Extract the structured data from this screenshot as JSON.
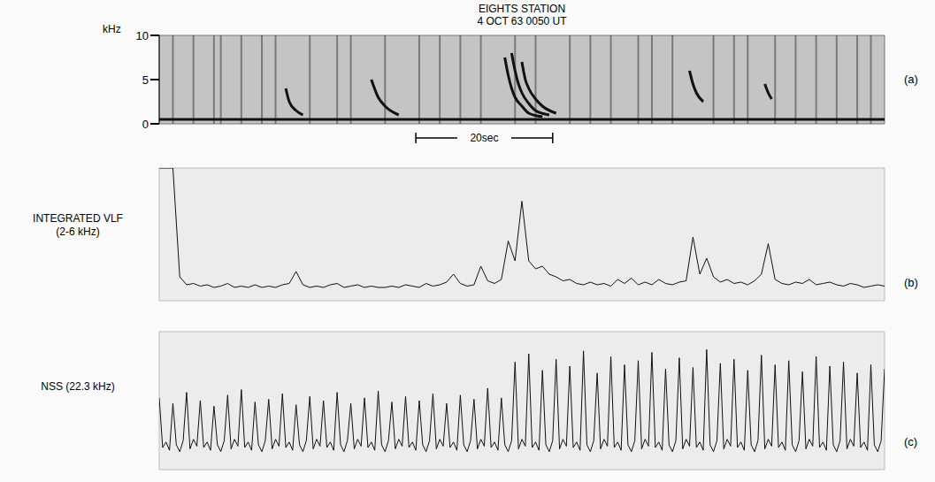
{
  "chart_data": [
    {
      "type": "spectrogram",
      "title": "EIGHTS STATION",
      "subtitle": "4 OCT 63 0050 UT",
      "panel": "(a)",
      "ylabel": "kHz",
      "xlim": [
        0,
        106
      ],
      "ylim": [
        0,
        10
      ],
      "yticks": [
        0,
        5,
        10
      ],
      "tick_labels": "y",
      "color": "#111111",
      "series": [
        {
          "x": [
            0,
            106
          ],
          "values": [
            0.5,
            0.5
          ]
        },
        {
          "x": [
            50.5,
            51,
            51.5,
            52,
            53,
            54,
            56
          ],
          "values": [
            7.5,
            5.5,
            4,
            3,
            2,
            1.2,
            0.8
          ]
        },
        {
          "x": [
            51.5,
            52,
            52.5,
            53,
            54,
            55,
            57
          ],
          "values": [
            8,
            6,
            4.5,
            3.5,
            2.3,
            1.5,
            1.0
          ]
        },
        {
          "x": [
            53,
            53.5,
            54,
            55,
            56,
            58
          ],
          "values": [
            7,
            5,
            4,
            2.8,
            2,
            1.2
          ]
        },
        {
          "x": [
            31,
            32,
            33,
            35
          ],
          "values": [
            5,
            3,
            2,
            1
          ]
        },
        {
          "x": [
            18.5,
            19,
            20,
            21
          ],
          "values": [
            4,
            2.5,
            1.5,
            1
          ]
        },
        {
          "x": [
            77.5,
            78,
            78.5,
            79.5
          ],
          "values": [
            6,
            4.5,
            3.5,
            2.5
          ]
        },
        {
          "x": [
            88.5,
            89,
            89.5
          ],
          "values": [
            4.5,
            3.5,
            2.8
          ]
        }
      ],
      "sferics": [
        2,
        5,
        8,
        9,
        12,
        15,
        17,
        22,
        26,
        28,
        33,
        38,
        41,
        44,
        47,
        52,
        55,
        60,
        63,
        66,
        70,
        72,
        75,
        81,
        84,
        86,
        90,
        93,
        96,
        99,
        102,
        104
      ],
      "annotations": [
        {
          "text": "20sec",
          "x": [
            37.5,
            57.5
          ]
        }
      ]
    },
    {
      "type": "line",
      "panel": "(b)",
      "ylabel": [
        "INTEGRATED VLF",
        "(2-6 kHz)"
      ],
      "xlim": [
        0,
        106
      ],
      "ylim": [
        0,
        10
      ],
      "tick_labels": false,
      "color": "#111111",
      "x": [
        0,
        1,
        2,
        3,
        4,
        5,
        6,
        7,
        8,
        9,
        10,
        11,
        12,
        13,
        14,
        15,
        16,
        17,
        18,
        19,
        20,
        21,
        22,
        23,
        24,
        25,
        26,
        27,
        28,
        29,
        30,
        31,
        32,
        33,
        34,
        35,
        36,
        37,
        38,
        39,
        40,
        41,
        42,
        43,
        44,
        45,
        46,
        47,
        48,
        49,
        50,
        51,
        52,
        53,
        54,
        55,
        56,
        57,
        58,
        59,
        60,
        61,
        62,
        63,
        64,
        65,
        66,
        67,
        68,
        69,
        70,
        71,
        72,
        73,
        74,
        75,
        76,
        77,
        78,
        79,
        80,
        81,
        82,
        83,
        84,
        85,
        86,
        87,
        88,
        89,
        90,
        91,
        92,
        93,
        94,
        95,
        96,
        97,
        98,
        99,
        100,
        101,
        102,
        103,
        104,
        105,
        106
      ],
      "values": [
        10,
        10,
        10,
        1.8,
        1.2,
        1.3,
        1.1,
        1.2,
        1.0,
        1.1,
        1.3,
        1.0,
        1.1,
        1.0,
        1.2,
        1.0,
        1.1,
        1.0,
        1.2,
        1.3,
        2.2,
        1.2,
        1.0,
        1.1,
        1.0,
        1.2,
        1.3,
        1.0,
        1.1,
        1.2,
        1.0,
        1.1,
        1.0,
        1.0,
        1.1,
        1.0,
        1.2,
        1.1,
        1.0,
        1.3,
        1.1,
        1.2,
        1.4,
        2.0,
        1.3,
        1.1,
        1.2,
        2.6,
        1.5,
        1.3,
        1.6,
        4.5,
        3.0,
        7.5,
        3.0,
        2.4,
        2.6,
        2.0,
        1.8,
        1.5,
        1.6,
        1.3,
        1.2,
        1.4,
        1.2,
        1.3,
        1.1,
        1.6,
        1.3,
        1.7,
        1.2,
        1.4,
        1.2,
        1.6,
        1.3,
        1.2,
        1.4,
        1.5,
        4.8,
        2.0,
        3.2,
        1.8,
        1.4,
        1.6,
        1.3,
        1.4,
        1.2,
        1.5,
        2.0,
        4.3,
        1.6,
        1.3,
        1.2,
        1.4,
        1.3,
        1.6,
        1.2,
        1.3,
        1.4,
        1.2,
        1.1,
        1.3,
        1.2,
        1.0,
        1.1,
        1.2,
        1.1
      ]
    },
    {
      "type": "line",
      "panel": "(c)",
      "ylabel": [
        "NSS (22.3 kHz)"
      ],
      "xlim": [
        0,
        106
      ],
      "ylim": [
        0,
        10
      ],
      "tick_labels": false,
      "color": "#111111",
      "x": [
        0,
        0.5,
        1,
        1.5,
        2,
        2.5,
        3,
        3.5,
        4,
        4.5,
        5,
        5.5,
        6,
        6.5,
        7,
        7.5,
        8,
        8.5,
        9,
        9.5,
        10,
        10.5,
        11,
        11.5,
        12,
        12.5,
        13,
        13.5,
        14,
        14.5,
        15,
        15.5,
        16,
        16.5,
        17,
        17.5,
        18,
        18.5,
        19,
        19.5,
        20,
        20.5,
        21,
        21.5,
        22,
        22.5,
        23,
        23.5,
        24,
        24.5,
        25,
        25.5,
        26,
        26.5,
        27,
        27.5,
        28,
        28.5,
        29,
        29.5,
        30,
        30.5,
        31,
        31.5,
        32,
        32.5,
        33,
        33.5,
        34,
        34.5,
        35,
        35.5,
        36,
        36.5,
        37,
        37.5,
        38,
        38.5,
        39,
        39.5,
        40,
        40.5,
        41,
        41.5,
        42,
        42.5,
        43,
        43.5,
        44,
        44.5,
        45,
        45.5,
        46,
        46.5,
        47,
        47.5,
        48,
        48.5,
        49,
        49.5,
        50,
        50.5,
        51,
        51.5,
        52,
        52.5,
        53,
        53.5,
        54,
        54.5,
        55,
        55.5,
        56,
        56.5,
        57,
        57.5,
        58,
        58.5,
        59,
        59.5,
        60,
        60.5,
        61,
        61.5,
        62,
        62.5,
        63,
        63.5,
        64,
        64.5,
        65,
        65.5,
        66,
        66.5,
        67,
        67.5,
        68,
        68.5,
        69,
        69.5,
        70,
        70.5,
        71,
        71.5,
        72,
        72.5,
        73,
        73.5,
        74,
        74.5,
        75,
        75.5,
        76,
        76.5,
        77,
        77.5,
        78,
        78.5,
        79,
        79.5,
        80,
        80.5,
        81,
        81.5,
        82,
        82.5,
        83,
        83.5,
        84,
        84.5,
        85,
        85.5,
        86,
        86.5,
        87,
        87.5,
        88,
        88.5,
        89,
        89.5,
        90,
        90.5,
        91,
        91.5,
        92,
        92.5,
        93,
        93.5,
        94,
        94.5,
        95,
        95.5,
        96,
        96.5,
        97,
        97.5,
        98,
        98.5,
        99,
        99.5,
        100,
        100.5,
        101,
        101.5,
        102,
        102.5,
        103,
        103.5,
        104,
        104.5,
        105,
        105.5,
        106
      ],
      "values": [
        5.2,
        1.6,
        2.0,
        1.4,
        4.8,
        1.8,
        1.3,
        2.1,
        5.6,
        1.5,
        2.2,
        1.7,
        5.0,
        1.6,
        2.0,
        1.4,
        4.6,
        1.8,
        1.3,
        2.1,
        5.4,
        1.5,
        2.2,
        1.7,
        5.8,
        1.6,
        2.0,
        1.4,
        4.9,
        1.8,
        1.3,
        2.1,
        5.1,
        1.5,
        2.2,
        1.7,
        5.5,
        1.6,
        2.0,
        1.4,
        4.7,
        1.8,
        1.3,
        2.1,
        5.3,
        1.5,
        2.2,
        1.7,
        5.0,
        1.6,
        2.0,
        1.4,
        5.6,
        1.8,
        1.3,
        2.1,
        4.8,
        1.5,
        2.2,
        1.7,
        5.2,
        1.6,
        2.0,
        1.4,
        5.7,
        1.8,
        1.3,
        2.1,
        4.9,
        1.5,
        2.2,
        1.7,
        5.3,
        1.6,
        2.0,
        1.4,
        5.0,
        1.8,
        1.3,
        2.1,
        5.5,
        1.5,
        2.2,
        1.7,
        4.8,
        1.6,
        2.0,
        1.4,
        5.4,
        1.8,
        1.3,
        2.1,
        5.1,
        1.5,
        2.2,
        1.7,
        5.9,
        1.6,
        2.0,
        1.4,
        5.2,
        1.8,
        1.3,
        2.1,
        7.8,
        1.5,
        2.2,
        1.7,
        8.4,
        1.6,
        2.0,
        1.4,
        7.2,
        1.8,
        1.3,
        2.1,
        8.0,
        1.5,
        2.2,
        1.7,
        7.5,
        1.6,
        2.0,
        1.4,
        8.6,
        1.8,
        1.3,
        2.1,
        7.0,
        1.5,
        2.2,
        1.7,
        8.2,
        1.6,
        2.0,
        1.4,
        7.6,
        1.8,
        1.3,
        2.1,
        7.9,
        1.5,
        2.2,
        1.7,
        8.5,
        1.6,
        2.0,
        1.4,
        7.3,
        1.8,
        1.3,
        2.1,
        8.1,
        1.5,
        2.2,
        1.7,
        7.4,
        1.6,
        2.0,
        1.4,
        8.7,
        1.8,
        1.3,
        2.1,
        7.7,
        1.5,
        2.2,
        1.7,
        8.0,
        1.6,
        2.0,
        1.4,
        7.2,
        1.8,
        1.3,
        2.1,
        8.3,
        1.5,
        2.2,
        1.7,
        7.6,
        1.6,
        2.0,
        1.4,
        7.9,
        1.8,
        1.3,
        2.1,
        7.1,
        1.5,
        2.2,
        1.7,
        8.2,
        1.6,
        2.0,
        1.4,
        7.5,
        1.8,
        1.3,
        2.1,
        7.8,
        1.5,
        2.2,
        1.7,
        7.0,
        1.6,
        2.0,
        1.4,
        7.6,
        1.8,
        1.3,
        2.1,
        7.3
      ]
    }
  ]
}
